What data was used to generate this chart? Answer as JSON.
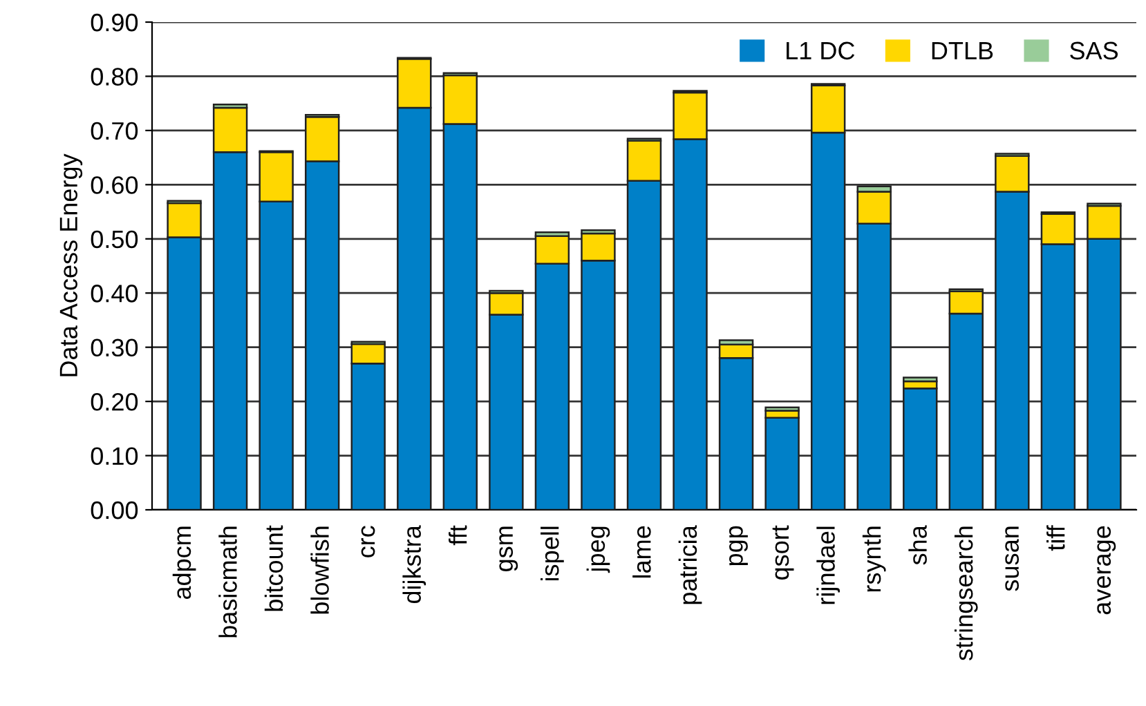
{
  "chart_data": {
    "type": "bar",
    "stacked": true,
    "ylabel": "Data Access Energy",
    "categories": [
      "adpcm",
      "basicmath",
      "bitcount",
      "blowfish",
      "crc",
      "dijkstra",
      "fft",
      "gsm",
      "ispell",
      "jpeg",
      "lame",
      "patricia",
      "pgp",
      "qsort",
      "rijndael",
      "rsynth",
      "sha",
      "stringsearch",
      "susan",
      "tiff",
      "average"
    ],
    "series": [
      {
        "name": "L1 DC",
        "color": "#0080c8",
        "values": [
          0.503,
          0.66,
          0.569,
          0.643,
          0.27,
          0.742,
          0.712,
          0.36,
          0.454,
          0.46,
          0.607,
          0.684,
          0.28,
          0.17,
          0.696,
          0.528,
          0.224,
          0.362,
          0.587,
          0.49,
          0.5
        ]
      },
      {
        "name": "DTLB",
        "color": "#ffd700",
        "values": [
          0.063,
          0.082,
          0.091,
          0.082,
          0.036,
          0.09,
          0.09,
          0.04,
          0.051,
          0.05,
          0.074,
          0.086,
          0.025,
          0.013,
          0.087,
          0.059,
          0.013,
          0.041,
          0.066,
          0.056,
          0.061
        ]
      },
      {
        "name": "SAS",
        "color": "#99cc99",
        "values": [
          0.004,
          0.006,
          0.002,
          0.004,
          0.004,
          0.002,
          0.004,
          0.004,
          0.007,
          0.006,
          0.004,
          0.003,
          0.008,
          0.006,
          0.003,
          0.01,
          0.007,
          0.004,
          0.004,
          0.003,
          0.004
        ]
      }
    ],
    "ylim": [
      0,
      0.9
    ],
    "yticks": [
      {
        "value": 0,
        "label": "0.00"
      },
      {
        "value": 0.1,
        "label": "0.10"
      },
      {
        "value": 0.2,
        "label": "0.20"
      },
      {
        "value": 0.3,
        "label": "0.30"
      },
      {
        "value": 0.4,
        "label": "0.40"
      },
      {
        "value": 0.5,
        "label": "0.50"
      },
      {
        "value": 0.6,
        "label": "0.60"
      },
      {
        "value": 0.7,
        "label": "0.70"
      },
      {
        "value": 0.8,
        "label": "0.80"
      },
      {
        "value": 0.9,
        "label": "0.90"
      }
    ],
    "grid": "y",
    "legend": "top right"
  }
}
